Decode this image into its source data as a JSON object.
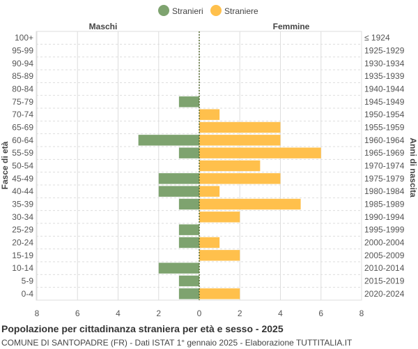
{
  "chart_data": {
    "type": "bar",
    "orientation": "horizontal-pyramid",
    "title": "Popolazione per cittadinanza straniera per età e sesso - 2025",
    "subtitle": "COMUNE DI SANTOPADRE (FR) - Dati ISTAT 1° gennaio 2025 - Elaborazione TUTTITALIA.IT",
    "left_header": "Maschi",
    "right_header": "Femmine",
    "ylabel_left": "Fasce di età",
    "ylabel_right": "Anni di nascita",
    "xlim": [
      -8,
      8
    ],
    "xticks": [
      "8",
      "6",
      "4",
      "2",
      "0",
      "2",
      "4",
      "6",
      "8"
    ],
    "grid": true,
    "legend_position": "top",
    "categories": [
      "100+",
      "95-99",
      "90-94",
      "85-89",
      "80-84",
      "75-79",
      "70-74",
      "65-69",
      "60-64",
      "55-59",
      "50-54",
      "45-49",
      "40-44",
      "35-39",
      "30-34",
      "25-29",
      "20-24",
      "15-19",
      "10-14",
      "5-9",
      "0-4"
    ],
    "birth_years": [
      "≤ 1924",
      "1925-1929",
      "1930-1934",
      "1935-1939",
      "1940-1944",
      "1945-1949",
      "1950-1954",
      "1955-1959",
      "1960-1964",
      "1965-1969",
      "1970-1974",
      "1975-1979",
      "1980-1984",
      "1985-1989",
      "1990-1994",
      "1995-1999",
      "2000-2004",
      "2005-2009",
      "2010-2014",
      "2015-2019",
      "2020-2024"
    ],
    "series": [
      {
        "name": "Stranieri",
        "color": "#7ea36f",
        "values": [
          0,
          0,
          0,
          0,
          0,
          1,
          0,
          0,
          3,
          1,
          0,
          2,
          2,
          1,
          0,
          1,
          1,
          0,
          2,
          1,
          1
        ]
      },
      {
        "name": "Straniere",
        "color": "#ffc04c",
        "values": [
          0,
          0,
          0,
          0,
          0,
          0,
          1,
          4,
          4,
          6,
          3,
          4,
          1,
          5,
          2,
          0,
          1,
          2,
          0,
          0,
          2
        ]
      }
    ]
  }
}
